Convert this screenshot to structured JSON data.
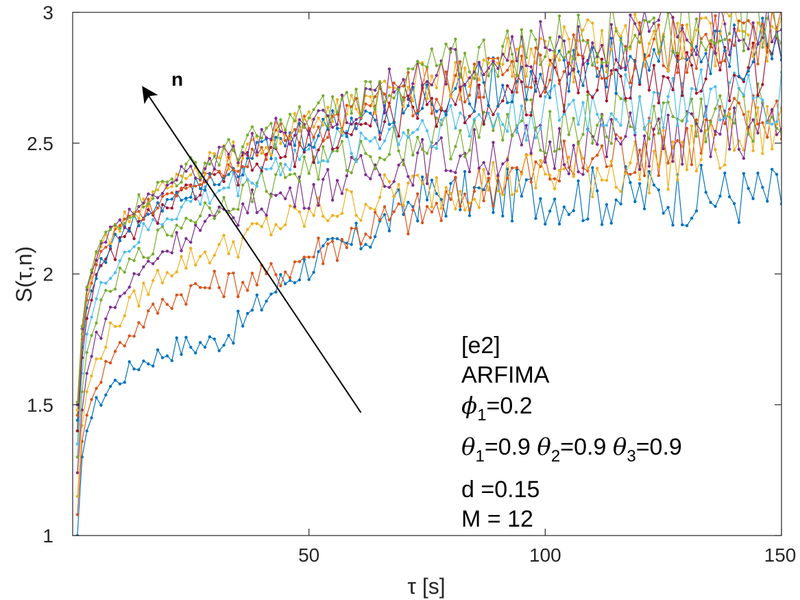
{
  "chart_data": {
    "type": "line",
    "xlabel": "τ [s]",
    "ylabel": "S(τ,n)",
    "xlim": [
      0,
      150
    ],
    "ylim": [
      1,
      3
    ],
    "xticks": [
      "50",
      "100",
      "150"
    ],
    "yticks": [
      "1",
      "1.5",
      "2",
      "2.5",
      "3"
    ],
    "grid": false,
    "arrow_label": "n",
    "arrow": {
      "from": [
        61,
        1.47
      ],
      "to": [
        15,
        2.71
      ]
    },
    "annotation": {
      "line1": "[e2]",
      "line2": "ARFIMA",
      "phi_symbol": "ϕ",
      "phi_sub": "1",
      "phi_value": "=0.2",
      "theta_symbol": "θ",
      "theta1_sub": "1",
      "theta1_value": "=0.9 ",
      "theta2_sub": "2",
      "theta2_value": "=0.9 ",
      "theta3_sub": "3",
      "theta3_value": "=0.9",
      "line5": "d =0.15",
      "line6": "M = 12"
    },
    "series": [
      {
        "color": "#0072BD",
        "values": [
          [
            1,
            1.0
          ],
          [
            2,
            1.3
          ],
          [
            3,
            1.4
          ],
          [
            5,
            1.5
          ],
          [
            8,
            1.57
          ],
          [
            10,
            1.6
          ],
          [
            14,
            1.66
          ],
          [
            18,
            1.69
          ],
          [
            22,
            1.72
          ],
          [
            26,
            1.73
          ],
          [
            30,
            1.74
          ],
          [
            35,
            1.8
          ],
          [
            38,
            1.85
          ],
          [
            42,
            1.93
          ],
          [
            48,
            2.02
          ],
          [
            55,
            2.08
          ],
          [
            60,
            2.12
          ],
          [
            65,
            2.18
          ],
          [
            70,
            2.26
          ],
          [
            75,
            2.3
          ]
        ]
      },
      {
        "color": "#D95319",
        "values": [
          [
            1,
            1.08
          ],
          [
            2,
            1.36
          ],
          [
            3,
            1.46
          ],
          [
            5,
            1.58
          ],
          [
            8,
            1.68
          ],
          [
            12,
            1.77
          ],
          [
            16,
            1.84
          ],
          [
            20,
            1.9
          ],
          [
            25,
            1.94
          ],
          [
            30,
            1.96
          ],
          [
            35,
            1.97
          ],
          [
            40,
            1.98
          ],
          [
            45,
            2.02
          ],
          [
            50,
            2.08
          ],
          [
            55,
            2.11
          ],
          [
            60,
            2.16
          ],
          [
            65,
            2.2
          ],
          [
            70,
            2.22
          ],
          [
            78,
            2.25
          ],
          [
            85,
            2.33
          ],
          [
            92,
            2.38
          ],
          [
            100,
            2.39
          ],
          [
            110,
            2.44
          ],
          [
            120,
            2.48
          ],
          [
            130,
            2.52
          ],
          [
            140,
            2.58
          ],
          [
            150,
            2.62
          ]
        ]
      },
      {
        "color": "#EDB120",
        "values": [
          [
            1,
            1.15
          ],
          [
            2,
            1.42
          ],
          [
            3,
            1.55
          ],
          [
            5,
            1.67
          ],
          [
            8,
            1.78
          ],
          [
            12,
            1.88
          ],
          [
            16,
            1.95
          ],
          [
            20,
            2.02
          ],
          [
            25,
            2.06
          ],
          [
            30,
            2.09
          ],
          [
            35,
            2.12
          ],
          [
            40,
            2.17
          ],
          [
            45,
            2.2
          ],
          [
            50,
            2.22
          ],
          [
            55,
            2.25
          ],
          [
            60,
            2.27
          ],
          [
            65,
            2.3
          ],
          [
            70,
            2.32
          ],
          [
            80,
            2.33
          ],
          [
            90,
            2.36
          ],
          [
            100,
            2.38
          ],
          [
            110,
            2.4
          ],
          [
            120,
            2.42
          ],
          [
            130,
            2.45
          ],
          [
            140,
            2.5
          ],
          [
            150,
            2.57
          ]
        ]
      },
      {
        "color": "#7E2F8E",
        "values": [
          [
            1,
            1.24
          ],
          [
            2,
            1.48
          ],
          [
            3,
            1.62
          ],
          [
            5,
            1.75
          ],
          [
            8,
            1.86
          ],
          [
            12,
            1.96
          ],
          [
            16,
            2.04
          ],
          [
            20,
            2.1
          ],
          [
            25,
            2.16
          ],
          [
            30,
            2.2
          ],
          [
            35,
            2.24
          ],
          [
            40,
            2.28
          ],
          [
            45,
            2.3
          ],
          [
            50,
            2.32
          ],
          [
            55,
            2.35
          ],
          [
            60,
            2.38
          ],
          [
            65,
            2.4
          ],
          [
            70,
            2.42
          ],
          [
            80,
            2.45
          ],
          [
            90,
            2.47
          ],
          [
            100,
            2.48
          ],
          [
            110,
            2.5
          ],
          [
            120,
            2.51
          ],
          [
            130,
            2.52
          ],
          [
            140,
            2.54
          ],
          [
            150,
            2.56
          ]
        ]
      },
      {
        "color": "#77AC30",
        "values": [
          [
            1,
            1.3
          ],
          [
            2,
            1.55
          ],
          [
            3,
            1.7
          ],
          [
            5,
            1.83
          ],
          [
            8,
            1.94
          ],
          [
            12,
            2.03
          ],
          [
            16,
            2.1
          ],
          [
            20,
            2.16
          ],
          [
            25,
            2.22
          ],
          [
            30,
            2.26
          ],
          [
            35,
            2.3
          ],
          [
            40,
            2.34
          ],
          [
            45,
            2.38
          ],
          [
            50,
            2.41
          ],
          [
            55,
            2.43
          ],
          [
            60,
            2.45
          ],
          [
            65,
            2.48
          ],
          [
            70,
            2.5
          ],
          [
            80,
            2.53
          ],
          [
            90,
            2.55
          ],
          [
            100,
            2.57
          ],
          [
            110,
            2.58
          ],
          [
            120,
            2.6
          ],
          [
            130,
            2.6
          ],
          [
            140,
            2.6
          ],
          [
            150,
            2.62
          ]
        ]
      },
      {
        "color": "#4DBEEE",
        "values": [
          [
            1,
            1.35
          ],
          [
            2,
            1.62
          ],
          [
            3,
            1.77
          ],
          [
            5,
            1.9
          ],
          [
            8,
            2.01
          ],
          [
            12,
            2.1
          ],
          [
            16,
            2.17
          ],
          [
            20,
            2.22
          ],
          [
            25,
            2.27
          ],
          [
            30,
            2.31
          ],
          [
            35,
            2.35
          ],
          [
            40,
            2.4
          ],
          [
            45,
            2.43
          ],
          [
            50,
            2.46
          ],
          [
            55,
            2.48
          ],
          [
            60,
            2.5
          ],
          [
            65,
            2.53
          ],
          [
            70,
            2.55
          ],
          [
            80,
            2.58
          ],
          [
            90,
            2.6
          ],
          [
            100,
            2.62
          ],
          [
            110,
            2.63
          ],
          [
            120,
            2.65
          ],
          [
            130,
            2.66
          ],
          [
            140,
            2.67
          ],
          [
            150,
            2.68
          ]
        ]
      },
      {
        "color": "#A2142F",
        "values": [
          [
            1,
            1.4
          ],
          [
            2,
            1.68
          ],
          [
            3,
            1.83
          ],
          [
            5,
            1.97
          ],
          [
            8,
            2.07
          ],
          [
            12,
            2.15
          ],
          [
            16,
            2.21
          ],
          [
            20,
            2.26
          ],
          [
            25,
            2.31
          ],
          [
            30,
            2.35
          ],
          [
            35,
            2.39
          ],
          [
            40,
            2.43
          ],
          [
            45,
            2.46
          ],
          [
            50,
            2.49
          ],
          [
            55,
            2.52
          ],
          [
            60,
            2.55
          ],
          [
            65,
            2.58
          ],
          [
            70,
            2.61
          ],
          [
            80,
            2.65
          ],
          [
            90,
            2.68
          ],
          [
            100,
            2.71
          ],
          [
            110,
            2.73
          ],
          [
            120,
            2.75
          ],
          [
            130,
            2.77
          ],
          [
            140,
            2.78
          ],
          [
            150,
            2.8
          ]
        ]
      },
      {
        "color": "#0072BD",
        "values": [
          [
            1,
            1.44
          ],
          [
            2,
            1.72
          ],
          [
            3,
            1.87
          ],
          [
            5,
            2.0
          ],
          [
            8,
            2.1
          ],
          [
            12,
            2.18
          ],
          [
            16,
            2.24
          ],
          [
            20,
            2.29
          ],
          [
            25,
            2.34
          ],
          [
            30,
            2.38
          ],
          [
            35,
            2.42
          ],
          [
            40,
            2.46
          ],
          [
            45,
            2.5
          ],
          [
            50,
            2.53
          ],
          [
            55,
            2.56
          ],
          [
            60,
            2.59
          ],
          [
            65,
            2.62
          ],
          [
            70,
            2.65
          ],
          [
            80,
            2.69
          ],
          [
            90,
            2.73
          ],
          [
            100,
            2.76
          ],
          [
            110,
            2.79
          ],
          [
            120,
            2.81
          ],
          [
            130,
            2.83
          ],
          [
            140,
            2.85
          ],
          [
            150,
            2.87
          ]
        ]
      },
      {
        "color": "#D95319",
        "values": [
          [
            1,
            1.46
          ],
          [
            2,
            1.75
          ],
          [
            3,
            1.9
          ],
          [
            5,
            2.03
          ],
          [
            8,
            2.13
          ],
          [
            12,
            2.2
          ],
          [
            16,
            2.26
          ],
          [
            20,
            2.31
          ],
          [
            25,
            2.36
          ],
          [
            30,
            2.4
          ],
          [
            35,
            2.44
          ],
          [
            40,
            2.48
          ],
          [
            45,
            2.52
          ],
          [
            50,
            2.55
          ],
          [
            55,
            2.58
          ],
          [
            60,
            2.61
          ],
          [
            65,
            2.64
          ],
          [
            70,
            2.68
          ],
          [
            80,
            2.72
          ],
          [
            90,
            2.76
          ],
          [
            100,
            2.8
          ],
          [
            110,
            2.83
          ],
          [
            120,
            2.85
          ],
          [
            130,
            2.87
          ],
          [
            140,
            2.89
          ],
          [
            150,
            2.9
          ]
        ]
      },
      {
        "color": "#EDB120",
        "values": [
          [
            1,
            1.48
          ],
          [
            2,
            1.77
          ],
          [
            3,
            1.92
          ],
          [
            5,
            2.05
          ],
          [
            8,
            2.15
          ],
          [
            12,
            2.22
          ],
          [
            16,
            2.28
          ],
          [
            20,
            2.33
          ],
          [
            25,
            2.38
          ],
          [
            30,
            2.42
          ],
          [
            35,
            2.46
          ],
          [
            40,
            2.5
          ],
          [
            45,
            2.54
          ],
          [
            50,
            2.57
          ],
          [
            55,
            2.6
          ],
          [
            60,
            2.63
          ],
          [
            65,
            2.67
          ],
          [
            70,
            2.7
          ],
          [
            80,
            2.75
          ],
          [
            90,
            2.79
          ],
          [
            100,
            2.83
          ],
          [
            110,
            2.86
          ],
          [
            120,
            2.88
          ],
          [
            130,
            2.9
          ],
          [
            140,
            2.92
          ],
          [
            150,
            2.93
          ]
        ]
      },
      {
        "color": "#7E2F8E",
        "values": [
          [
            1,
            1.5
          ],
          [
            2,
            1.79
          ],
          [
            3,
            1.94
          ],
          [
            5,
            2.07
          ],
          [
            8,
            2.16
          ],
          [
            12,
            2.23
          ],
          [
            16,
            2.29
          ],
          [
            20,
            2.34
          ],
          [
            25,
            2.39
          ],
          [
            30,
            2.43
          ],
          [
            35,
            2.47
          ],
          [
            40,
            2.51
          ],
          [
            45,
            2.55
          ],
          [
            50,
            2.58
          ],
          [
            55,
            2.62
          ],
          [
            60,
            2.65
          ],
          [
            65,
            2.69
          ],
          [
            70,
            2.73
          ],
          [
            80,
            2.78
          ],
          [
            90,
            2.82
          ],
          [
            100,
            2.86
          ],
          [
            110,
            2.89
          ],
          [
            120,
            2.91
          ],
          [
            130,
            2.93
          ],
          [
            140,
            2.95
          ],
          [
            150,
            2.96
          ]
        ]
      },
      {
        "color": "#77AC30",
        "values": [
          [
            1,
            1.51
          ],
          [
            2,
            1.8
          ],
          [
            3,
            1.95
          ],
          [
            5,
            2.08
          ],
          [
            8,
            2.17
          ],
          [
            12,
            2.24
          ],
          [
            16,
            2.3
          ],
          [
            20,
            2.35
          ],
          [
            25,
            2.4
          ],
          [
            30,
            2.44
          ],
          [
            35,
            2.48
          ],
          [
            40,
            2.52
          ],
          [
            45,
            2.56
          ],
          [
            50,
            2.6
          ],
          [
            55,
            2.63
          ],
          [
            60,
            2.67
          ],
          [
            65,
            2.71
          ],
          [
            70,
            2.75
          ],
          [
            80,
            2.8
          ],
          [
            90,
            2.84
          ],
          [
            100,
            2.88
          ],
          [
            110,
            2.91
          ],
          [
            120,
            2.93
          ],
          [
            130,
            2.95
          ],
          [
            140,
            2.97
          ],
          [
            150,
            2.98
          ]
        ]
      }
    ]
  }
}
